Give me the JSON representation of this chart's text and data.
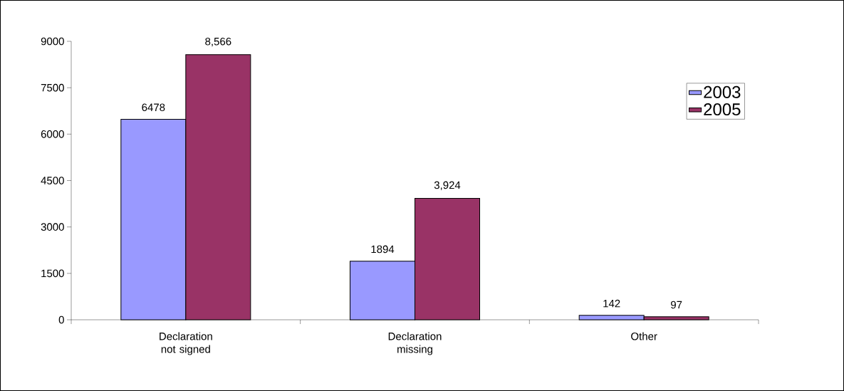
{
  "chart_data": {
    "type": "bar",
    "categories": [
      "Declaration not signed",
      "Declaration missing",
      "Other"
    ],
    "series": [
      {
        "name": "2003",
        "color": "#9999ff",
        "values": [
          6478,
          1894,
          142
        ],
        "value_labels": [
          "6478",
          "1894",
          "142"
        ]
      },
      {
        "name": "2005",
        "color": "#993366",
        "values": [
          8566,
          3924,
          97
        ],
        "value_labels": [
          "8,566",
          "3,924",
          "97"
        ]
      }
    ],
    "ylim": [
      0,
      9000
    ],
    "yticks": [
      0,
      1500,
      3000,
      4500,
      6000,
      7500,
      9000
    ],
    "legend": "top right",
    "grid": false
  }
}
